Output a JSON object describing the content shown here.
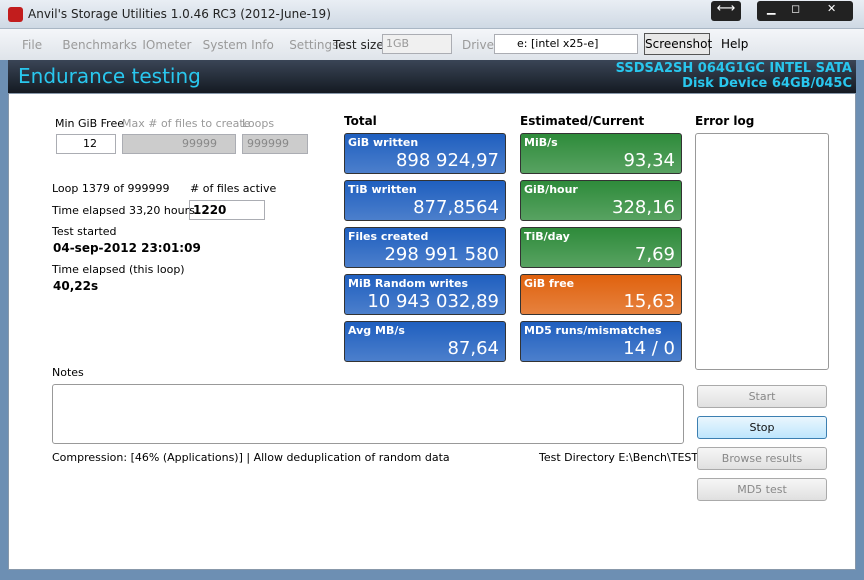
{
  "window": {
    "title": "Anvil's Storage Utilities 1.0.46 RC3 (2012-June-19)"
  },
  "menu": {
    "items": [
      "File",
      "Benchmarks",
      "IOmeter",
      "System Info",
      "Settings"
    ],
    "test_size_label": "Test size",
    "test_size": "1GB",
    "drive_label": "Drive",
    "drive": "e: [intel x25-e]",
    "screenshot": "Screenshot",
    "help": "Help"
  },
  "header": {
    "title": "Endurance testing",
    "device_line1": "SSDSA2SH 064G1GC INTEL SATA",
    "device_line2": "Disk Device 64GB/045C"
  },
  "settings": {
    "min_gib_free_label": "Min GiB Free",
    "min_gib_free": "12",
    "max_files_label": "Max # of files to create",
    "max_files": "99999",
    "loops_label": "Loops",
    "loops": "999999"
  },
  "status": {
    "loop": "Loop 1379 of 999999",
    "files_active_label": "# of files active",
    "files_active": "1220",
    "time_elapsed": "Time elapsed 33,20 hours",
    "test_started_label": "Test started",
    "test_started": "04-sep-2012 23:01:09",
    "loop_time_label": "Time elapsed (this loop)",
    "loop_time": "40,22s"
  },
  "total": {
    "title": "Total",
    "tiles": [
      {
        "label": "GiB written",
        "value": "898 924,97",
        "color": "#1f5fbf"
      },
      {
        "label": "TiB written",
        "value": "877,8564",
        "color": "#1f5fbf"
      },
      {
        "label": "Files created",
        "value": "298 991 580",
        "color": "#1f5fbf"
      },
      {
        "label": "MiB Random writes",
        "value": "10 943 032,89",
        "color": "#1f5fbf"
      },
      {
        "label": "Avg MB/s",
        "value": "87,64",
        "color": "#1f5fbf"
      }
    ]
  },
  "current": {
    "title": "Estimated/Current",
    "tiles": [
      {
        "label": "MiB/s",
        "value": "93,34",
        "color": "#2e8b3a"
      },
      {
        "label": "GiB/hour",
        "value": "328,16",
        "color": "#2e8b3a"
      },
      {
        "label": "TiB/day",
        "value": "7,69",
        "color": "#2e8b3a"
      },
      {
        "label": "GiB free",
        "value": "15,63",
        "color": "#e0620e"
      },
      {
        "label": "MD5 runs/mismatches",
        "value": "14 / 0",
        "color": "#1f5fbf"
      }
    ]
  },
  "error_log": {
    "title": "Error log"
  },
  "notes": {
    "label": "Notes"
  },
  "footer": {
    "compression": "Compression: [46% (Applications)] | Allow deduplication of random data",
    "test_directory": "Test Directory E:\\Bench\\TEST"
  },
  "buttons": [
    "Start",
    "Stop",
    "Browse results",
    "MD5 test"
  ]
}
